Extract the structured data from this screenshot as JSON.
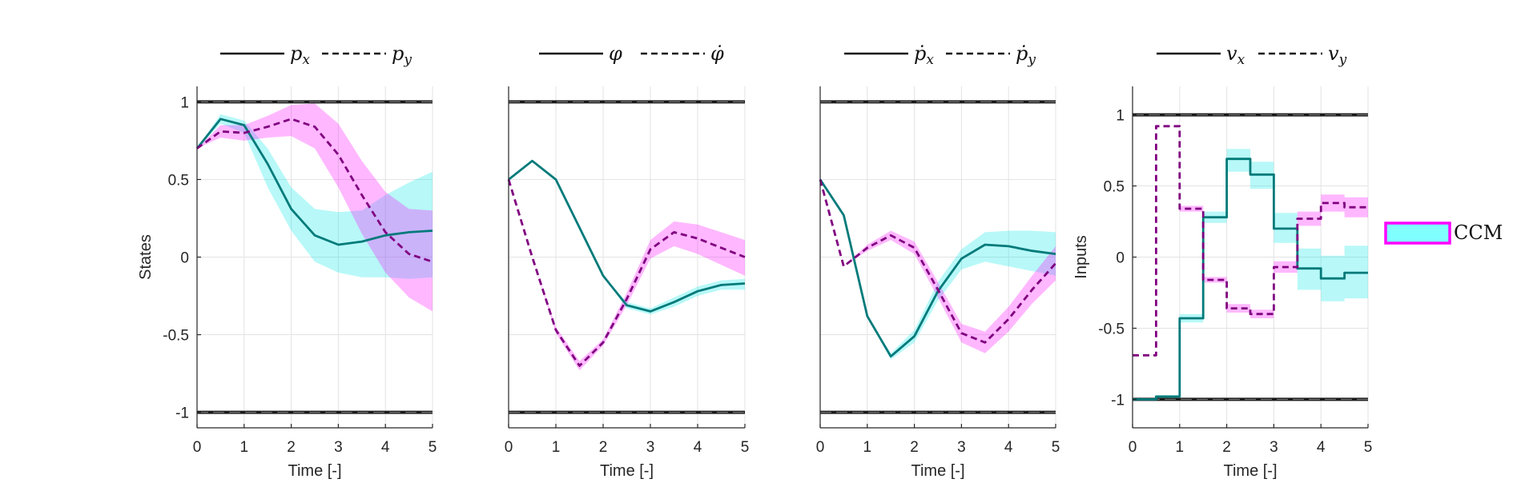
{
  "chart_data": [
    {
      "type": "line",
      "xlabel": "Time [-]",
      "ylabel": "States",
      "xlim": [
        0,
        5
      ],
      "ylim": [
        -1.1,
        1.1
      ],
      "xticks": [
        "0",
        "1",
        "2",
        "3",
        "4",
        "5"
      ],
      "yticks": [
        "1",
        "0.5",
        "0",
        "-0.5",
        "-1"
      ],
      "ytick_values": [
        1,
        0.5,
        0,
        -0.5,
        -1
      ],
      "constraints": [
        1,
        -1
      ],
      "grid": true,
      "legend_position": "top",
      "series": [
        {
          "name": "p_x",
          "label_main": "p",
          "label_sub": "x",
          "style": "solid",
          "color": "#007a7a",
          "x": [
            0,
            0.5,
            1,
            1.5,
            2,
            2.5,
            3,
            3.5,
            4,
            4.5,
            5
          ],
          "y": [
            0.7,
            0.89,
            0.85,
            0.6,
            0.31,
            0.14,
            0.08,
            0.1,
            0.14,
            0.16,
            0.17
          ],
          "band_lower": [
            0.7,
            0.86,
            0.8,
            0.45,
            0.17,
            -0.03,
            -0.1,
            -0.13,
            -0.13,
            -0.14,
            -0.13
          ],
          "band_upper": [
            0.7,
            0.92,
            0.88,
            0.7,
            0.45,
            0.31,
            0.29,
            0.3,
            0.4,
            0.48,
            0.55
          ],
          "band_color": "#00e5e5"
        },
        {
          "name": "p_y",
          "label_main": "p",
          "label_sub": "y",
          "style": "dashed",
          "color": "#800080",
          "x": [
            0,
            0.5,
            1,
            1.5,
            2,
            2.5,
            3,
            3.5,
            4,
            4.5,
            5
          ],
          "y": [
            0.7,
            0.81,
            0.8,
            0.84,
            0.89,
            0.84,
            0.66,
            0.4,
            0.16,
            0.02,
            -0.03
          ],
          "band_lower": [
            0.7,
            0.77,
            0.75,
            0.77,
            0.78,
            0.7,
            0.45,
            0.15,
            -0.1,
            -0.26,
            -0.35
          ],
          "band_upper": [
            0.7,
            0.85,
            0.85,
            0.91,
            0.98,
            0.99,
            0.86,
            0.62,
            0.42,
            0.31,
            0.3
          ],
          "band_color": "#ff00ff"
        }
      ]
    },
    {
      "type": "line",
      "xlabel": "Time [-]",
      "ylabel": "",
      "xlim": [
        0,
        5
      ],
      "ylim": [
        -1.1,
        1.1
      ],
      "xticks": [
        "0",
        "1",
        "2",
        "3",
        "4",
        "5"
      ],
      "yticks": [],
      "ytick_values": [
        1,
        0.5,
        0,
        -0.5,
        -1
      ],
      "constraints": [
        1,
        -1
      ],
      "grid": true,
      "legend_position": "top",
      "series": [
        {
          "name": "phi",
          "label_main": "φ",
          "label_sub": "",
          "style": "solid",
          "color": "#007a7a",
          "x": [
            0,
            0.5,
            1,
            1.5,
            2,
            2.5,
            3,
            3.5,
            4,
            4.5,
            5
          ],
          "y": [
            0.5,
            0.62,
            0.5,
            0.19,
            -0.12,
            -0.31,
            -0.35,
            -0.29,
            -0.22,
            -0.18,
            -0.17
          ],
          "band_lower": [
            0.5,
            0.62,
            0.5,
            0.19,
            -0.12,
            -0.33,
            -0.37,
            -0.32,
            -0.25,
            -0.21,
            -0.21
          ],
          "band_upper": [
            0.5,
            0.62,
            0.5,
            0.19,
            -0.12,
            -0.29,
            -0.33,
            -0.26,
            -0.19,
            -0.15,
            -0.14
          ],
          "band_color": "#00e5e5"
        },
        {
          "name": "phi_dot",
          "label_main": "φ̇",
          "label_sub": "",
          "style": "dashed",
          "color": "#800080",
          "x": [
            0,
            0.5,
            1,
            1.5,
            2,
            2.5,
            3,
            3.5,
            4,
            4.5,
            5
          ],
          "y": [
            0.5,
            0.0,
            -0.47,
            -0.7,
            -0.55,
            -0.27,
            0.05,
            0.16,
            0.12,
            0.06,
            0.0
          ],
          "band_lower": [
            0.5,
            0.0,
            -0.49,
            -0.73,
            -0.57,
            -0.31,
            -0.01,
            0.07,
            0.02,
            -0.05,
            -0.12
          ],
          "band_upper": [
            0.5,
            0.0,
            -0.45,
            -0.67,
            -0.53,
            -0.23,
            0.11,
            0.23,
            0.21,
            0.16,
            0.11
          ],
          "band_color": "#ff00ff"
        }
      ]
    },
    {
      "type": "line",
      "xlabel": "Time [-]",
      "ylabel": "",
      "xlim": [
        0,
        5
      ],
      "ylim": [
        -1.1,
        1.1
      ],
      "xticks": [
        "0",
        "1",
        "2",
        "3",
        "4",
        "5"
      ],
      "yticks": [],
      "ytick_values": [
        1,
        0.5,
        0,
        -0.5,
        -1
      ],
      "constraints": [
        1,
        -1
      ],
      "grid": true,
      "legend_position": "top",
      "series": [
        {
          "name": "p_x_dot",
          "label_main": "ṗ",
          "label_sub": "x",
          "style": "solid",
          "color": "#007a7a",
          "x": [
            0,
            0.5,
            1,
            1.5,
            2,
            2.5,
            3,
            3.5,
            4,
            4.5,
            5
          ],
          "y": [
            0.5,
            0.27,
            -0.38,
            -0.64,
            -0.51,
            -0.22,
            -0.01,
            0.08,
            0.07,
            0.04,
            0.02
          ],
          "band_lower": [
            0.5,
            0.27,
            -0.38,
            -0.66,
            -0.55,
            -0.28,
            -0.08,
            -0.03,
            -0.06,
            -0.09,
            -0.12
          ],
          "band_upper": [
            0.5,
            0.27,
            -0.38,
            -0.62,
            -0.47,
            -0.16,
            0.05,
            0.16,
            0.17,
            0.17,
            0.16
          ],
          "band_color": "#00e5e5"
        },
        {
          "name": "p_y_dot",
          "label_main": "ṗ",
          "label_sub": "y",
          "style": "dashed",
          "color": "#800080",
          "x": [
            0,
            0.5,
            1,
            1.5,
            2,
            2.5,
            3,
            3.5,
            4,
            4.5,
            5
          ],
          "y": [
            0.5,
            -0.06,
            0.06,
            0.14,
            0.06,
            -0.21,
            -0.49,
            -0.55,
            -0.4,
            -0.21,
            -0.04
          ],
          "band_lower": [
            0.5,
            -0.06,
            0.04,
            0.11,
            0.02,
            -0.26,
            -0.55,
            -0.62,
            -0.48,
            -0.3,
            -0.15
          ],
          "band_upper": [
            0.5,
            -0.06,
            0.08,
            0.17,
            0.1,
            -0.16,
            -0.43,
            -0.48,
            -0.32,
            -0.12,
            0.07
          ],
          "band_color": "#ff00ff"
        }
      ]
    },
    {
      "type": "line",
      "xlabel": "Time [-]",
      "ylabel": "Inputs",
      "xlim": [
        0,
        5
      ],
      "ylim": [
        -1.2,
        1.2
      ],
      "xticks": [
        "0",
        "1",
        "2",
        "3",
        "4",
        "5"
      ],
      "yticks": [
        "1",
        "0.5",
        "0",
        "-0.5",
        "-1"
      ],
      "ytick_values": [
        1,
        0.5,
        0,
        -0.5,
        -1
      ],
      "constraints": [
        1,
        -1
      ],
      "grid": true,
      "legend_position": "top",
      "step": true,
      "series": [
        {
          "name": "v_x",
          "label_main": "v",
          "label_sub": "x",
          "style": "solid",
          "color": "#007a7a",
          "x": [
            0,
            0.5,
            1,
            1.5,
            2,
            2.5,
            3,
            3.5,
            4,
            4.5,
            5
          ],
          "y": [
            -1.0,
            -0.98,
            -0.43,
            0.28,
            0.69,
            0.58,
            0.2,
            -0.08,
            -0.15,
            -0.11,
            -0.11
          ],
          "band_lower": [
            -1.0,
            -0.99,
            -0.46,
            0.24,
            0.6,
            0.48,
            0.1,
            -0.23,
            -0.31,
            -0.29,
            -0.29
          ],
          "band_upper": [
            -1.0,
            -0.97,
            -0.4,
            0.32,
            0.76,
            0.67,
            0.31,
            0.06,
            0.01,
            0.08,
            0.08
          ],
          "band_color": "#00e5e5"
        },
        {
          "name": "v_y",
          "label_main": "v",
          "label_sub": "y",
          "style": "dashed",
          "color": "#800080",
          "x": [
            0,
            0.5,
            1,
            1.5,
            2,
            2.5,
            3,
            3.5,
            4,
            4.5,
            5
          ],
          "y": [
            -0.69,
            0.92,
            0.34,
            -0.16,
            -0.36,
            -0.4,
            -0.07,
            0.27,
            0.38,
            0.35,
            0.35
          ],
          "band_lower": [
            -0.69,
            0.92,
            0.32,
            -0.18,
            -0.39,
            -0.43,
            -0.11,
            0.22,
            0.32,
            0.28,
            0.28
          ],
          "band_upper": [
            -0.69,
            0.92,
            0.36,
            -0.14,
            -0.33,
            -0.37,
            -0.03,
            0.32,
            0.44,
            0.42,
            0.42
          ],
          "band_color": "#ff00ff"
        }
      ]
    }
  ],
  "side_legend": {
    "label": "CCM",
    "fill": "#80ffff",
    "edge": "#ff00ff"
  }
}
